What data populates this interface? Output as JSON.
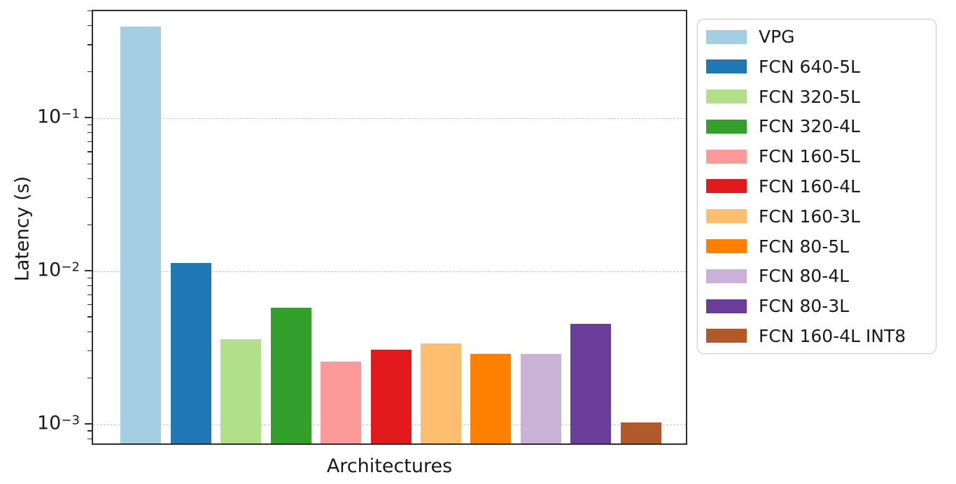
{
  "figure": {
    "background": "#ffffff",
    "spine_color": "#2e2e2e",
    "grid_color": "#c2c2c2",
    "text_color": "#191919"
  },
  "chart_data": {
    "type": "bar",
    "title": "",
    "xlabel": "Architectures",
    "ylabel": "Latency (s)",
    "yscale": "log",
    "ylim": [
      0.00073,
      0.507
    ],
    "grid": "horizontal dashed gridlines at major (decade) ticks",
    "legend_position": "outside upper right",
    "yticks": [
      {
        "value": 0.1,
        "exponent": -1
      },
      {
        "value": 0.01,
        "exponent": -2
      },
      {
        "value": 0.001,
        "exponent": -3
      }
    ],
    "series": [
      {
        "name": "VPG",
        "value": 0.385,
        "color": "#a6cee3"
      },
      {
        "name": "FCN 640-5L",
        "value": 0.011,
        "color": "#1f78b4"
      },
      {
        "name": "FCN 320-5L",
        "value": 0.0035,
        "color": "#b2df8a"
      },
      {
        "name": "FCN 320-4L",
        "value": 0.0056,
        "color": "#33a02c"
      },
      {
        "name": "FCN 160-5L",
        "value": 0.0025,
        "color": "#fb9a99"
      },
      {
        "name": "FCN 160-4L",
        "value": 0.003,
        "color": "#e31a1c"
      },
      {
        "name": "FCN 160-3L",
        "value": 0.0033,
        "color": "#fdbf6f"
      },
      {
        "name": "FCN 80-5L",
        "value": 0.0028,
        "color": "#ff7f00"
      },
      {
        "name": "FCN 80-4L",
        "value": 0.0028,
        "color": "#cab2d6"
      },
      {
        "name": "FCN 80-3L",
        "value": 0.0044,
        "color": "#6a3d9a"
      },
      {
        "name": "FCN 160-4L INT8",
        "value": 0.001,
        "color": "#b15928"
      }
    ]
  }
}
